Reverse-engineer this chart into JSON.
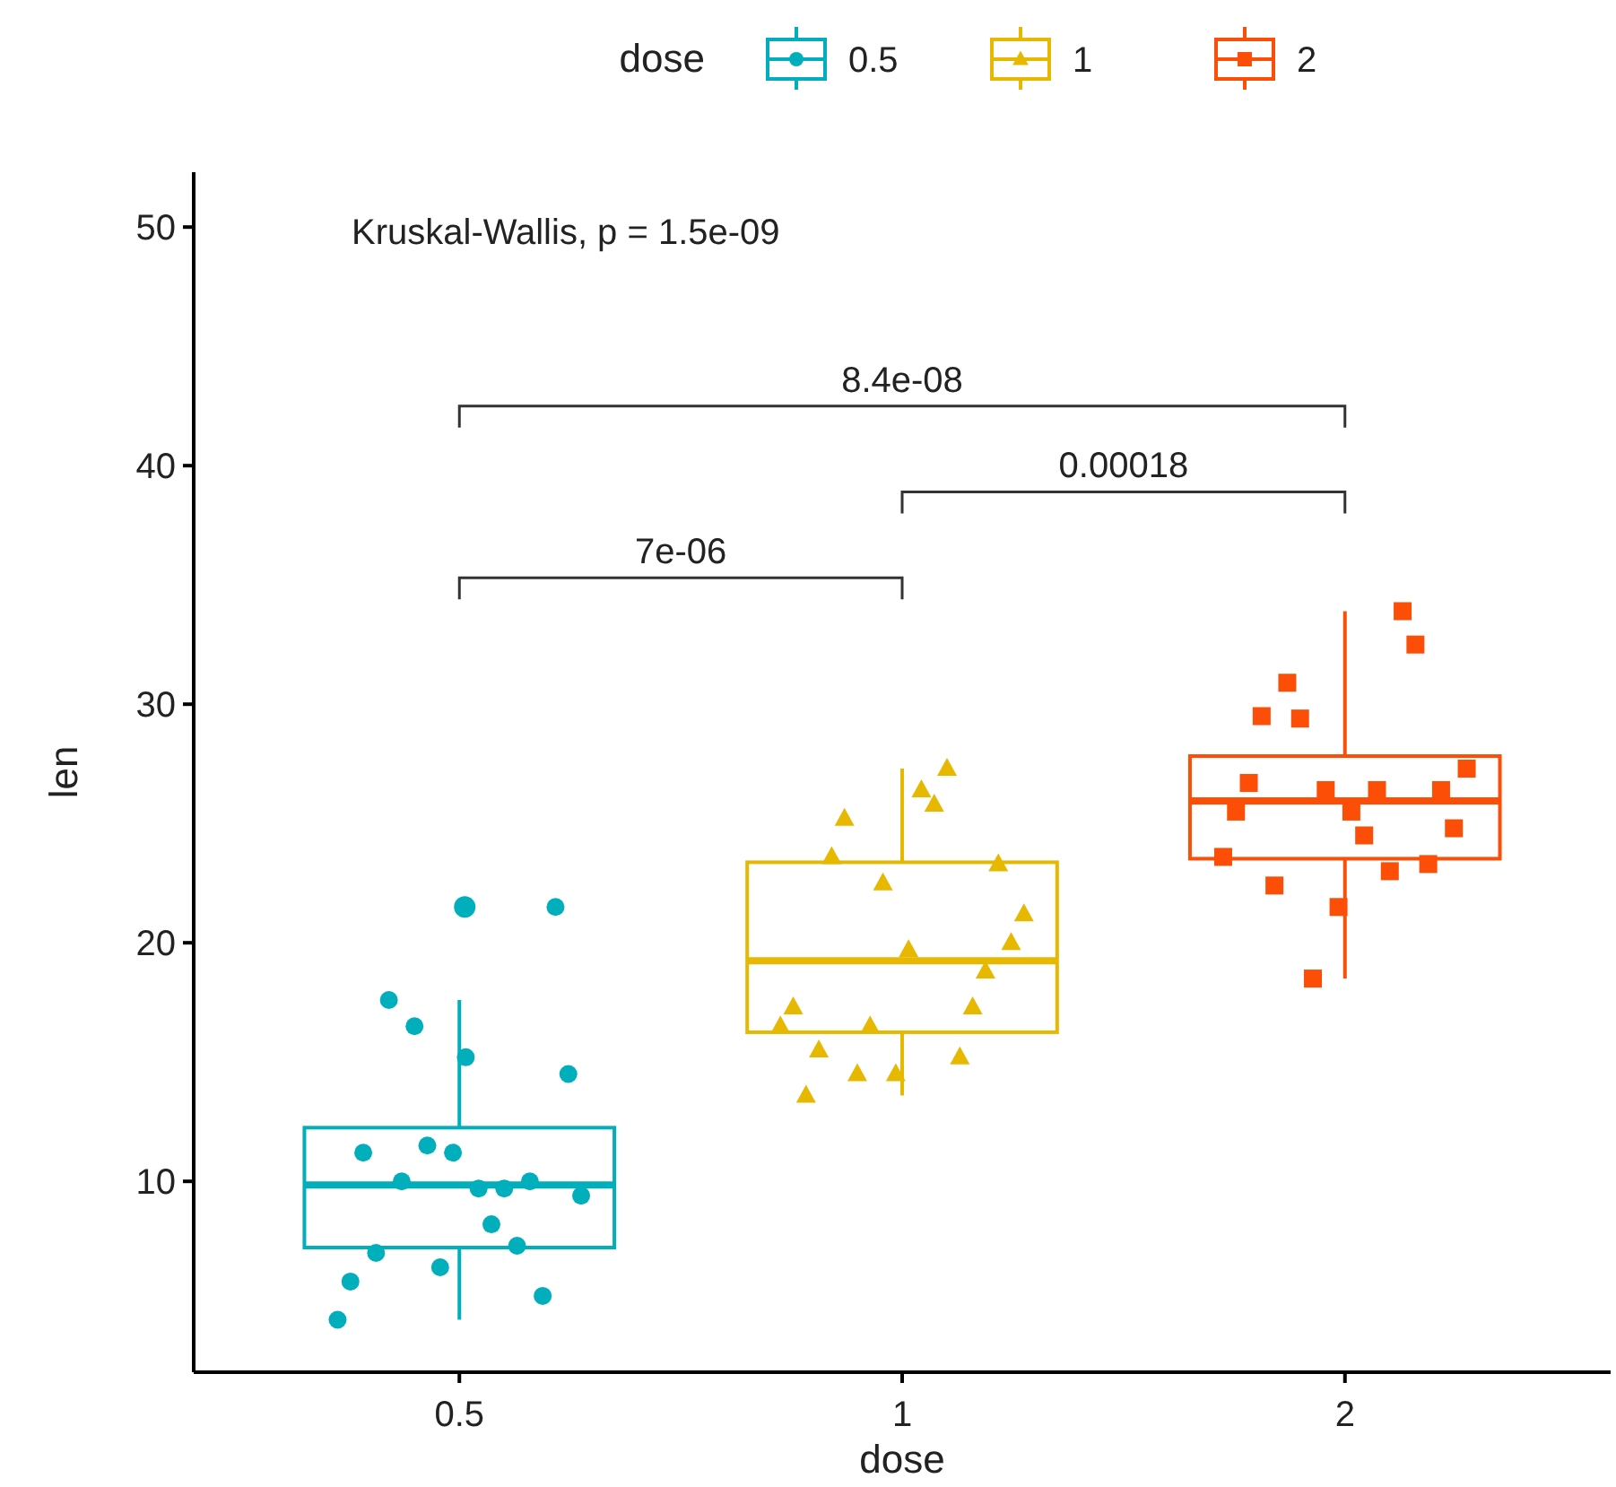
{
  "chart_data": {
    "type": "box",
    "xlabel": "dose",
    "ylabel": "len",
    "legend_title": "dose",
    "legend": "top",
    "categories": [
      "0.5",
      "1",
      "2"
    ],
    "ylim": [
      2,
      52.3
    ],
    "yticks": [
      10,
      20,
      30,
      40,
      50
    ],
    "grid": false,
    "annotations": [
      "Kruskal-Wallis, p = 1.5e-09",
      "7e-06",
      "0.00018",
      "8.4e-08"
    ],
    "series": [
      {
        "name": "0.5",
        "color": "#00afbb",
        "type": "box",
        "marker": "circle",
        "x": [
          "0.5"
        ],
        "boxes": [
          {
            "low": 4.2,
            "q1": 7.225,
            "median": 9.85,
            "q3": 12.25,
            "high": 17.6,
            "outliers": [
              21.5
            ]
          }
        ]
      },
      {
        "name": "1",
        "color": "#e7b800",
        "type": "box",
        "marker": "triangle",
        "x": [
          "1"
        ],
        "boxes": [
          {
            "low": 13.6,
            "q1": 16.25,
            "median": 19.25,
            "q3": 23.375,
            "high": 27.3
          }
        ]
      },
      {
        "name": "2",
        "color": "#fc4e07",
        "type": "box",
        "marker": "square",
        "x": [
          "2"
        ],
        "boxes": [
          {
            "low": 18.5,
            "q1": 23.525,
            "median": 25.95,
            "q3": 27.825,
            "high": 33.9
          }
        ]
      },
      {
        "type": "scatter",
        "color": "#00afbb",
        "marker": "circle",
        "x": [
          "0.5",
          "0.5",
          "0.5",
          "0.5",
          "0.5",
          "0.5",
          "0.5",
          "0.5",
          "0.5",
          "0.5",
          "0.5",
          "0.5",
          "0.5",
          "0.5",
          "0.5",
          "0.5",
          "0.5",
          "0.5",
          "0.5",
          "0.5"
        ],
        "values": [
          4.2,
          11.5,
          7.3,
          5.8,
          6.4,
          10,
          11.2,
          11.2,
          5.2,
          7,
          15.2,
          21.5,
          17.6,
          9.7,
          14.5,
          10,
          8.2,
          9.4,
          16.5,
          9.7
        ]
      },
      {
        "type": "scatter",
        "color": "#e7b800",
        "marker": "triangle",
        "x": [
          "1",
          "1",
          "1",
          "1",
          "1",
          "1",
          "1",
          "1",
          "1",
          "1",
          "1",
          "1",
          "1",
          "1",
          "1",
          "1",
          "1",
          "1",
          "1",
          "1"
        ],
        "values": [
          16.5,
          16.5,
          15.2,
          17.3,
          22.5,
          17.3,
          13.6,
          14.5,
          18.8,
          15.5,
          19.7,
          23.3,
          23.6,
          26.4,
          20,
          25.2,
          25.8,
          21.2,
          14.5,
          27.3
        ]
      },
      {
        "type": "scatter",
        "color": "#fc4e07",
        "marker": "square",
        "x": [
          "2",
          "2",
          "2",
          "2",
          "2",
          "2",
          "2",
          "2",
          "2",
          "2",
          "2",
          "2",
          "2",
          "2",
          "2",
          "2",
          "2",
          "2",
          "2",
          "2"
        ],
        "values": [
          23.6,
          18.5,
          33.9,
          25.5,
          26.4,
          32.5,
          26.7,
          21.5,
          23.3,
          29.5,
          25.5,
          26.4,
          22.4,
          24.5,
          24.8,
          30.9,
          26.4,
          27.3,
          29.4,
          23
        ]
      }
    ]
  }
}
